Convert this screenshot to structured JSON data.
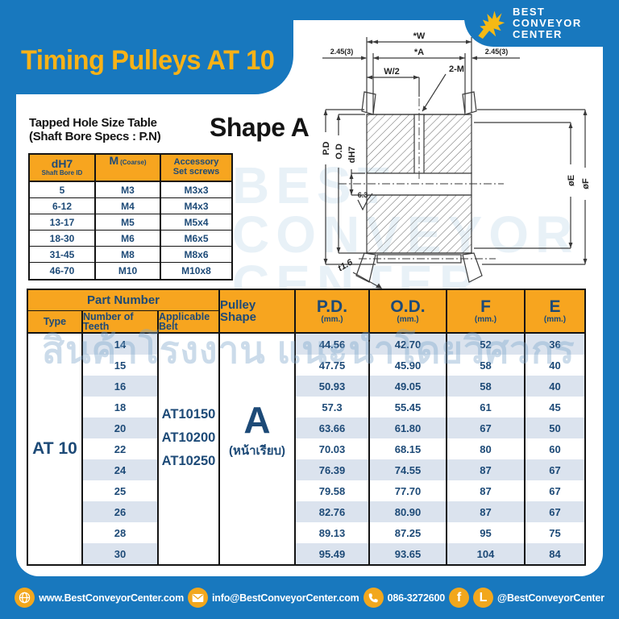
{
  "colors": {
    "blue": "#1878be",
    "gold": "#f8b217",
    "header_yellow": "#f7a51f",
    "navy": "#1d4a77",
    "stripe": "#dbe3ee"
  },
  "title": "Timing Pulleys AT 10",
  "logo": {
    "name_lines": [
      "BEST",
      "CONVEYOR",
      "CENTER"
    ]
  },
  "shape_heading": "Shape A",
  "tapped_table": {
    "title_line1": "Tapped Hole Size Table",
    "title_line2": "(Shaft Bore Specs : P.N)",
    "col1": {
      "main": "dH7",
      "sub": "Shaft Bore ID"
    },
    "col2": {
      "main": "M",
      "sub": "(Coarse)"
    },
    "col3": {
      "line1": "Accessory",
      "line2": "Set screws"
    },
    "rows": [
      [
        "5",
        "M3",
        "M3x3"
      ],
      [
        "6-12",
        "M4",
        "M4x3"
      ],
      [
        "13-17",
        "M5",
        "M5x4"
      ],
      [
        "18-30",
        "M6",
        "M6x5"
      ],
      [
        "31-45",
        "M8",
        "M8x6"
      ],
      [
        "46-70",
        "M10",
        "M10x8"
      ]
    ]
  },
  "drawing": {
    "dim_w": "*W",
    "dim_a": "*A",
    "dim_left": "2.45(3)",
    "dim_right": "2.45(3)",
    "dim_w2": "W/2",
    "dim_2m": "2-M",
    "dim_pd": "P.D",
    "dim_od": "O.D",
    "dim_dh7": "dH7",
    "surface": "6.3",
    "dim_e": "øE",
    "dim_f": "øF",
    "dim_t": "t1.6"
  },
  "main_table": {
    "part_number_header": "Part Number",
    "col_type": "Type",
    "col_teeth": "Number of Teeth",
    "col_belt": "Applicable Belt",
    "col_shape": "Pulley Shape",
    "dims": [
      {
        "label": "P.D.",
        "unit": "(mm.)"
      },
      {
        "label": "O.D.",
        "unit": "(mm.)"
      },
      {
        "label": "F",
        "unit": "(mm.)"
      },
      {
        "label": "E",
        "unit": "(mm.)"
      }
    ],
    "type_value": "AT 10",
    "belts": [
      "AT10150",
      "AT10200",
      "AT10250"
    ],
    "shape_value": "A",
    "shape_sub": "(หน้าเรียบ)",
    "rows": [
      {
        "teeth": "14",
        "pd": "44.56",
        "od": "42.70",
        "f": "52",
        "e": "36"
      },
      {
        "teeth": "15",
        "pd": "47.75",
        "od": "45.90",
        "f": "58",
        "e": "40"
      },
      {
        "teeth": "16",
        "pd": "50.93",
        "od": "49.05",
        "f": "58",
        "e": "40"
      },
      {
        "teeth": "18",
        "pd": "57.3",
        "od": "55.45",
        "f": "61",
        "e": "45"
      },
      {
        "teeth": "20",
        "pd": "63.66",
        "od": "61.80",
        "f": "67",
        "e": "50"
      },
      {
        "teeth": "22",
        "pd": "70.03",
        "od": "68.15",
        "f": "80",
        "e": "60"
      },
      {
        "teeth": "24",
        "pd": "76.39",
        "od": "74.55",
        "f": "87",
        "e": "67"
      },
      {
        "teeth": "25",
        "pd": "79.58",
        "od": "77.70",
        "f": "87",
        "e": "67"
      },
      {
        "teeth": "26",
        "pd": "82.76",
        "od": "80.90",
        "f": "87",
        "e": "67"
      },
      {
        "teeth": "28",
        "pd": "89.13",
        "od": "87.25",
        "f": "95",
        "e": "75"
      },
      {
        "teeth": "30",
        "pd": "95.49",
        "od": "93.65",
        "f": "104",
        "e": "84"
      }
    ]
  },
  "watermark": {
    "thai": "สินค้าโรงงาน แนะนำโดยวิศวกร",
    "logo_lines": [
      "BEST",
      "CONVEYOR",
      "CENTER"
    ]
  },
  "footer": {
    "website": "www.BestConveyorCenter.com",
    "email": "info@BestConveyorCenter.com",
    "phone": "086-3272600",
    "facebook": "f",
    "line": "L",
    "social": "@BestConveyorCenter"
  }
}
